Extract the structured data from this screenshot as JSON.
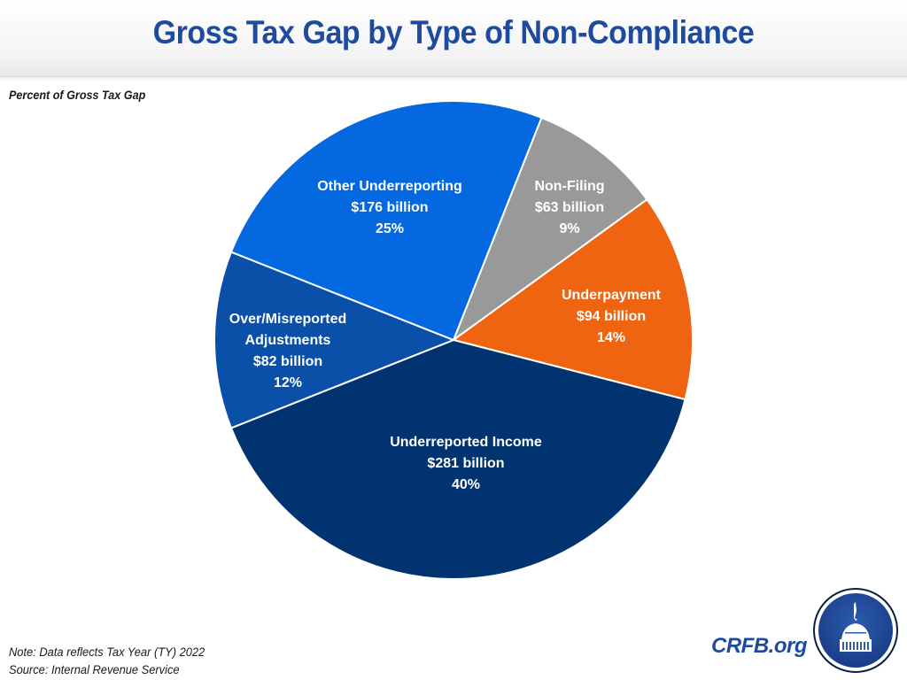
{
  "header": {
    "title": "Gross Tax Gap by Type of Non-Compliance"
  },
  "subtitle": "Percent of Gross Tax Gap",
  "footer": {
    "note": "Note: Data reflects Tax Year (TY) 2022",
    "source": "Source: Internal Revenue Service",
    "brand": "CRFB.org",
    "logo_icon": "capitol-dome-logo"
  },
  "chart_data": {
    "type": "pie",
    "title": "Gross Tax Gap by Type of Non-Compliance",
    "subtitle": "Percent of Gross Tax Gap",
    "unit": "billion USD",
    "start_angle_deg_clockwise_from_top": 21.6,
    "slices": [
      {
        "name": "Non-Filing",
        "lines": [
          "Non-Filing",
          "$63 billion",
          "9%"
        ],
        "value": 63,
        "percent": 9,
        "color": "#999999"
      },
      {
        "name": "Underpayment",
        "lines": [
          "Underpayment",
          "$94 billion",
          "14%"
        ],
        "value": 94,
        "percent": 14,
        "color": "#ee6411"
      },
      {
        "name": "Underreported Income",
        "lines": [
          "Underreported Income",
          "$281 billion",
          "40%"
        ],
        "value": 281,
        "percent": 40,
        "color": "#00336f"
      },
      {
        "name": "Over/Misreported Adjustments",
        "lines": [
          "Over/Misreported",
          "Adjustments",
          "$82 billion",
          "12%"
        ],
        "value": 82,
        "percent": 12,
        "color": "#0a4fa8"
      },
      {
        "name": "Other Underreporting",
        "lines": [
          "Other Underreporting",
          "$176 billion",
          "25%"
        ],
        "value": 176,
        "percent": 25,
        "color": "#0469e0"
      }
    ]
  }
}
